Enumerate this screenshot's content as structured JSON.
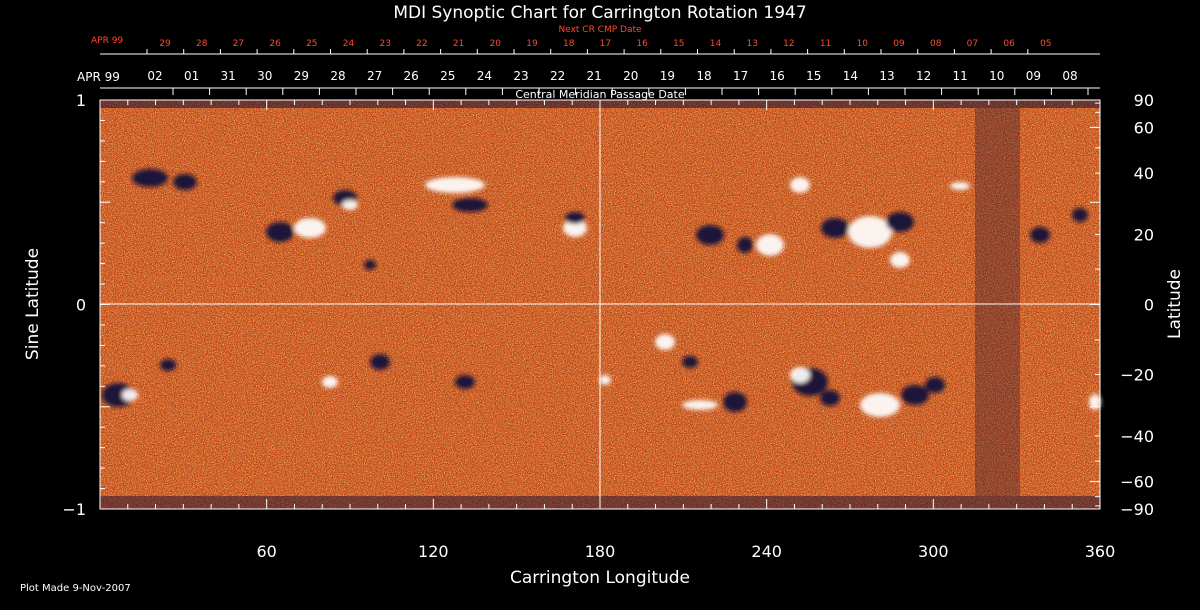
{
  "chart_data": {
    "type": "heatmap",
    "title": "MDI Synoptic Chart for Carrington Rotation 1947",
    "xlabel": "Carrington Longitude",
    "ylabel_left": "Sine Latitude",
    "ylabel_right": "Latitude",
    "xlim": [
      0,
      360
    ],
    "ylim": [
      -1,
      1
    ],
    "x_ticks": [
      "60",
      "120",
      "180",
      "240",
      "300",
      "360"
    ],
    "y_ticks_left": [
      "1",
      "0",
      "−1"
    ],
    "y_ticks_right": [
      "90",
      "60",
      "40",
      "20",
      "0",
      "−20",
      "−40",
      "−60",
      "−90"
    ],
    "cmp_axis_label": "Central Meridian Passage Date",
    "cmp_month": "APR 99",
    "cmp_dates": [
      "02",
      "01",
      "31",
      "30",
      "29",
      "28",
      "27",
      "26",
      "25",
      "24",
      "23",
      "22",
      "21",
      "20",
      "19",
      "18",
      "17",
      "16",
      "15",
      "14",
      "13",
      "12",
      "11",
      "10",
      "09",
      "08"
    ],
    "next_axis_label": "Next CR CMP Date",
    "next_month": "APR 99",
    "next_dates": [
      "29",
      "28",
      "27",
      "26",
      "25",
      "24",
      "23",
      "22",
      "21",
      "20",
      "19",
      "18",
      "17",
      "16",
      "15",
      "14",
      "13",
      "12",
      "11",
      "10",
      "09",
      "08",
      "07",
      "06",
      "05"
    ],
    "grid": "lines at longitude 180 and latitude 0",
    "colors": {
      "background": "#000000",
      "field_base": "#d94c12",
      "positive": "#ffffff",
      "negative": "#0b0b3a",
      "next_axis": "#ff4a2a"
    },
    "footnote": "Plot Made  9-Nov-2007"
  }
}
